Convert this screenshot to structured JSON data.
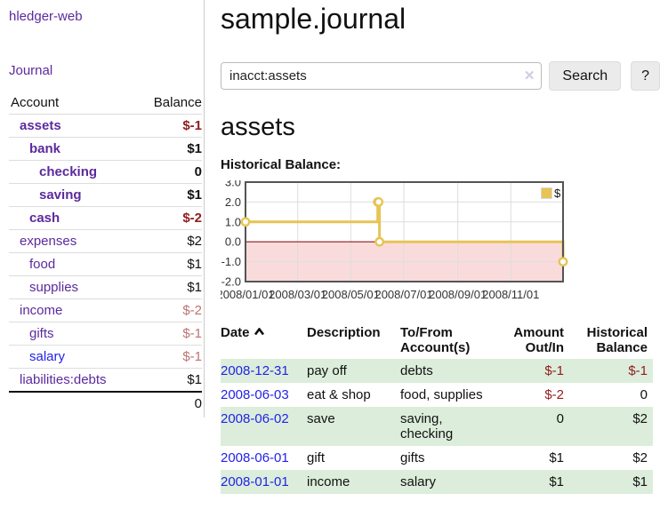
{
  "sidebar": {
    "app_title": "hledger-web",
    "journal_link": "Journal",
    "accounts_table": {
      "headers": {
        "account": "Account",
        "balance": "Balance"
      },
      "rows": [
        {
          "name": "assets",
          "balance": "$-1"
        },
        {
          "name": "bank",
          "balance": "$1"
        },
        {
          "name": "checking",
          "balance": "0"
        },
        {
          "name": "saving",
          "balance": "$1"
        },
        {
          "name": "cash",
          "balance": "$-2"
        },
        {
          "name": "expenses",
          "balance": "$2"
        },
        {
          "name": "food",
          "balance": "$1"
        },
        {
          "name": "supplies",
          "balance": "$1"
        },
        {
          "name": "income",
          "balance": "$-2"
        },
        {
          "name": "gifts",
          "balance": "$-1"
        },
        {
          "name": "salary",
          "balance": "$-1"
        },
        {
          "name": "liabilities:debts",
          "balance": "$1"
        }
      ],
      "total": "0"
    }
  },
  "main": {
    "title": "sample.journal",
    "search": {
      "value": "inacct:assets",
      "clear_icon": "✕",
      "search_button": "Search",
      "help_button": "?"
    },
    "account_heading": "assets",
    "chart_label": "Historical Balance:",
    "register_table": {
      "headers": {
        "date": "Date",
        "description": "Description",
        "accounts": "To/From Account(s)",
        "amount": "Amount Out/In",
        "balance": "Historical Balance"
      },
      "rows": [
        {
          "date": "2008-12-31",
          "description": "pay off",
          "accounts": "debts",
          "amount": "$-1",
          "balance": "$-1"
        },
        {
          "date": "2008-06-03",
          "description": "eat & shop",
          "accounts": "food, supplies",
          "amount": "$-2",
          "balance": "0"
        },
        {
          "date": "2008-06-02",
          "description": "save",
          "accounts": "saving, checking",
          "amount": "0",
          "balance": "$2"
        },
        {
          "date": "2008-06-01",
          "description": "gift",
          "accounts": "gifts",
          "amount": "$1",
          "balance": "$2"
        },
        {
          "date": "2008-01-01",
          "description": "income",
          "accounts": "salary",
          "amount": "$1",
          "balance": "$1"
        }
      ]
    }
  },
  "chart_data": {
    "type": "line",
    "step": true,
    "title": "Historical Balance",
    "xlabel": "",
    "ylabel": "",
    "ylim": [
      -2,
      3
    ],
    "yticks": [
      3.0,
      2.0,
      1.0,
      0.0,
      -1.0,
      -2.0
    ],
    "ytick_labels": [
      "3.0",
      "2.0",
      "1.0",
      "0.0",
      "-1.0",
      "-2.0"
    ],
    "xtick_labels": [
      "2008/01/01",
      "2008/03/01",
      "2008/05/01",
      "2008/07/01",
      "2008/09/01",
      "2008/11/01"
    ],
    "x_tick_days": [
      0,
      60,
      121,
      182,
      244,
      305
    ],
    "x_total_days": 365,
    "x_days": [
      0,
      152,
      153,
      154,
      365
    ],
    "series": [
      {
        "name": "$",
        "color": "#e7c453",
        "dates": [
          "2008-01-01",
          "2008-06-01",
          "2008-06-02",
          "2008-06-03",
          "2008-12-31"
        ],
        "values": [
          1,
          2,
          2,
          0,
          -1
        ]
      }
    ],
    "grid": true,
    "legend_position": "top-right",
    "grid_color": "#dddddd",
    "border_color": "#545454",
    "negative_region_color": "#fadbdb",
    "zero_line_color": "#8b1a1a"
  }
}
